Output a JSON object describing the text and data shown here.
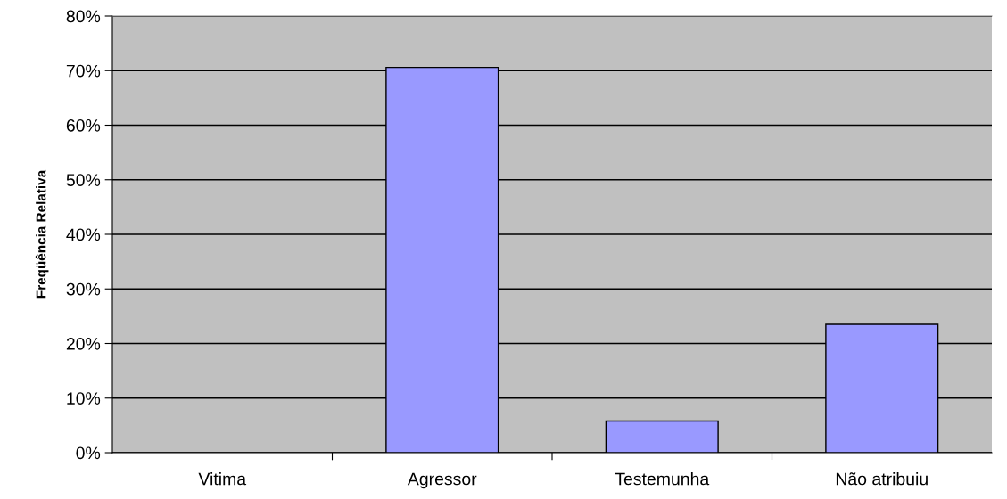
{
  "chart_data": {
    "type": "bar",
    "ylabel": "Freqüência Relativa",
    "categories": [
      "Vitima",
      "Agressor",
      "Testemunha",
      "Não atribuiu"
    ],
    "values": [
      0,
      70.6,
      5.8,
      23.5
    ],
    "color": "#9999ff",
    "ylim": [
      0,
      80
    ],
    "yticks": [
      {
        "value": 0,
        "label": "0%"
      },
      {
        "value": 10,
        "label": "10%"
      },
      {
        "value": 20,
        "label": "20%"
      },
      {
        "value": 30,
        "label": "30%"
      },
      {
        "value": 40,
        "label": "40%"
      },
      {
        "value": 50,
        "label": "50%"
      },
      {
        "value": 60,
        "label": "60%"
      },
      {
        "value": 70,
        "label": "70%"
      },
      {
        "value": 80,
        "label": "80%"
      }
    ],
    "grid": "y"
  }
}
